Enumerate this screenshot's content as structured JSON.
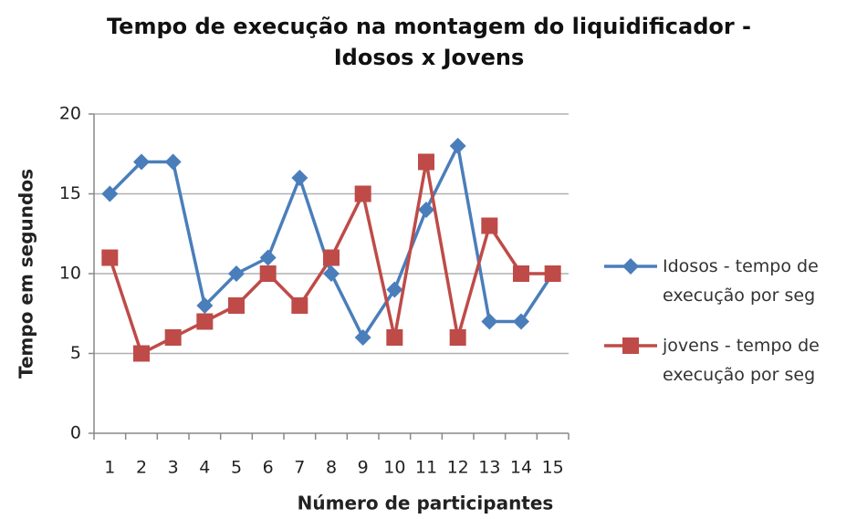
{
  "chart_data": {
    "type": "line",
    "title": "Tempo de execução na montagem do liquidificador - Idosos x Jovens",
    "x_label": "Número de participantes",
    "y_label": "Tempo em segundos",
    "categories": [
      "1",
      "2",
      "3",
      "4",
      "5",
      "6",
      "7",
      "8",
      "9",
      "10",
      "11",
      "12",
      "13",
      "14",
      "15"
    ],
    "series": [
      {
        "name": "Idosos - tempo de execução por seg",
        "color": "#4a7ebb",
        "marker": "diamond",
        "values": [
          15,
          17,
          17,
          8,
          10,
          11,
          16,
          10,
          6,
          9,
          14,
          18,
          7,
          7,
          10
        ]
      },
      {
        "name": "jovens - tempo de execução por seg",
        "color": "#be4b48",
        "marker": "square",
        "values": [
          11,
          5,
          6,
          7,
          8,
          10,
          8,
          11,
          15,
          6,
          17,
          6,
          13,
          10,
          10
        ]
      }
    ],
    "ylim": [
      0,
      20
    ],
    "yticks": [
      0,
      5,
      10,
      15,
      20
    ],
    "grid": true,
    "legend": "right"
  }
}
